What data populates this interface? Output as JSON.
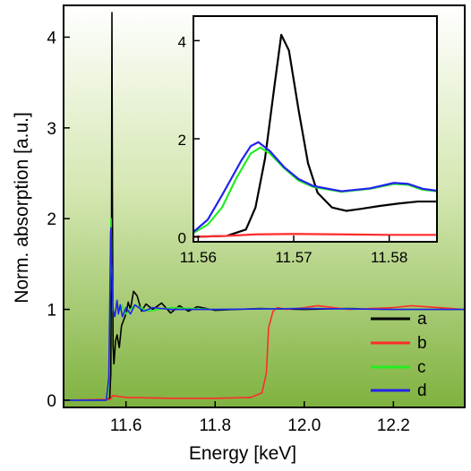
{
  "chart_data": [
    {
      "type": "line",
      "xlabel": "Energy [keV]",
      "ylabel": "Norm. absorption [a.u.]",
      "xlim": [
        11.46,
        12.36
      ],
      "ylim": [
        -0.08,
        4.35
      ],
      "xticks": [
        11.6,
        11.8,
        12.0,
        12.2
      ],
      "xtick_labels": [
        "11.6",
        "11.8",
        "12.0",
        "12.2"
      ],
      "yticks": [
        0,
        1,
        2,
        3,
        4
      ],
      "ytick_labels": [
        "0",
        "1",
        "2",
        "3",
        "4"
      ],
      "background": "gradient white (top) to green (bottom)",
      "legend_position": "bottom-right",
      "series": [
        {
          "name": "a",
          "color": "#000000",
          "points": [
            [
              11.46,
              0.0
            ],
            [
              11.555,
              0.0
            ],
            [
              11.5635,
              0.02
            ],
            [
              11.566,
              0.3
            ],
            [
              11.5675,
              1.8
            ],
            [
              11.5685,
              4.27
            ],
            [
              11.5695,
              2.3
            ],
            [
              11.571,
              0.6
            ],
            [
              11.573,
              0.4
            ],
            [
              11.5765,
              0.65
            ],
            [
              11.58,
              0.72
            ],
            [
              11.585,
              0.58
            ],
            [
              11.59,
              0.82
            ],
            [
              11.6,
              0.95
            ],
            [
              11.605,
              1.08
            ],
            [
              11.61,
              1.0
            ],
            [
              11.617,
              1.2
            ],
            [
              11.625,
              1.15
            ],
            [
              11.635,
              0.98
            ],
            [
              11.645,
              1.06
            ],
            [
              11.66,
              1.0
            ],
            [
              11.68,
              1.07
            ],
            [
              11.7,
              0.96
            ],
            [
              11.72,
              1.04
            ],
            [
              11.74,
              0.98
            ],
            [
              11.76,
              1.03
            ],
            [
              11.8,
              0.99
            ],
            [
              11.9,
              1.01
            ],
            [
              12.0,
              1.0
            ],
            [
              12.1,
              1.01
            ],
            [
              12.2,
              1.0
            ],
            [
              12.36,
              1.0
            ]
          ]
        },
        {
          "name": "b",
          "color": "#ff2b2b",
          "points": [
            [
              11.46,
              0.0
            ],
            [
              11.565,
              0.01
            ],
            [
              11.57,
              0.05
            ],
            [
              11.6,
              0.03
            ],
            [
              11.7,
              0.02
            ],
            [
              11.8,
              0.02
            ],
            [
              11.88,
              0.03
            ],
            [
              11.905,
              0.08
            ],
            [
              11.915,
              0.3
            ],
            [
              11.92,
              0.8
            ],
            [
              11.93,
              0.98
            ],
            [
              11.94,
              1.02
            ],
            [
              11.96,
              1.0
            ],
            [
              12.0,
              1.02
            ],
            [
              12.03,
              1.04
            ],
            [
              12.1,
              1.0
            ],
            [
              12.2,
              1.02
            ],
            [
              12.24,
              1.04
            ],
            [
              12.36,
              1.0
            ]
          ]
        },
        {
          "name": "c",
          "color": "#22ee22",
          "points": [
            [
              11.46,
              0.0
            ],
            [
              11.556,
              0.0
            ],
            [
              11.5615,
              0.2
            ],
            [
              11.5635,
              0.9
            ],
            [
              11.5655,
              1.75
            ],
            [
              11.5665,
              2.0
            ],
            [
              11.568,
              1.5
            ],
            [
              11.571,
              1.0
            ],
            [
              11.575,
              0.92
            ],
            [
              11.58,
              1.1
            ],
            [
              11.583,
              0.95
            ],
            [
              11.59,
              1.05
            ],
            [
              11.6,
              0.95
            ],
            [
              11.62,
              1.05
            ],
            [
              11.65,
              0.98
            ],
            [
              11.7,
              1.02
            ],
            [
              11.8,
              1.0
            ],
            [
              12.0,
              1.01
            ],
            [
              12.2,
              1.0
            ],
            [
              12.36,
              1.0
            ]
          ]
        },
        {
          "name": "d",
          "color": "#2222ee",
          "points": [
            [
              11.46,
              0.0
            ],
            [
              11.556,
              0.0
            ],
            [
              11.5615,
              0.25
            ],
            [
              11.5635,
              1.0
            ],
            [
              11.5655,
              1.85
            ],
            [
              11.5665,
              1.9
            ],
            [
              11.568,
              1.5
            ],
            [
              11.571,
              1.0
            ],
            [
              11.575,
              0.92
            ],
            [
              11.58,
              1.1
            ],
            [
              11.583,
              0.95
            ],
            [
              11.587,
              1.05
            ],
            [
              11.592,
              0.92
            ],
            [
              11.6,
              1.02
            ],
            [
              11.61,
              0.95
            ],
            [
              11.62,
              1.05
            ],
            [
              11.64,
              0.98
            ],
            [
              11.66,
              1.02
            ],
            [
              11.7,
              1.0
            ],
            [
              11.8,
              1.0
            ],
            [
              12.0,
              1.01
            ],
            [
              12.2,
              1.0
            ],
            [
              12.36,
              1.0
            ]
          ]
        }
      ]
    },
    {
      "type": "line",
      "inset": true,
      "xlim": [
        11.5595,
        11.585
      ],
      "ylim": [
        -0.1,
        4.5
      ],
      "xticks": [
        11.56,
        11.57,
        11.58
      ],
      "xtick_labels": [
        "11.56",
        "11.57",
        "11.58"
      ],
      "yticks": [
        0,
        2,
        4
      ],
      "ytick_labels": [
        "0",
        "2",
        "4"
      ],
      "series": [
        {
          "name": "a",
          "color": "#000000",
          "points": [
            [
              11.5595,
              0.0
            ],
            [
              11.563,
              0.02
            ],
            [
              11.565,
              0.15
            ],
            [
              11.566,
              0.6
            ],
            [
              11.567,
              1.6
            ],
            [
              11.568,
              3.1
            ],
            [
              11.5687,
              4.12
            ],
            [
              11.5695,
              3.8
            ],
            [
              11.5705,
              2.6
            ],
            [
              11.5715,
              1.5
            ],
            [
              11.5725,
              0.9
            ],
            [
              11.574,
              0.6
            ],
            [
              11.5755,
              0.53
            ],
            [
              11.577,
              0.57
            ],
            [
              11.579,
              0.63
            ],
            [
              11.581,
              0.68
            ],
            [
              11.583,
              0.72
            ],
            [
              11.585,
              0.72
            ]
          ]
        },
        {
          "name": "b",
          "color": "#ff2b2b",
          "points": [
            [
              11.5595,
              0.0
            ],
            [
              11.563,
              0.02
            ],
            [
              11.566,
              0.05
            ],
            [
              11.57,
              0.06
            ],
            [
              11.575,
              0.05
            ],
            [
              11.58,
              0.04
            ],
            [
              11.585,
              0.04
            ]
          ]
        },
        {
          "name": "c",
          "color": "#22ee22",
          "points": [
            [
              11.5595,
              0.08
            ],
            [
              11.561,
              0.25
            ],
            [
              11.5625,
              0.6
            ],
            [
              11.564,
              1.2
            ],
            [
              11.5655,
              1.7
            ],
            [
              11.5665,
              1.82
            ],
            [
              11.5675,
              1.7
            ],
            [
              11.569,
              1.4
            ],
            [
              11.5705,
              1.15
            ],
            [
              11.572,
              1.02
            ],
            [
              11.575,
              0.92
            ],
            [
              11.578,
              0.98
            ],
            [
              11.5805,
              1.08
            ],
            [
              11.582,
              1.06
            ],
            [
              11.5835,
              0.96
            ],
            [
              11.585,
              0.93
            ]
          ]
        },
        {
          "name": "d",
          "color": "#2222ee",
          "points": [
            [
              11.5595,
              0.1
            ],
            [
              11.561,
              0.35
            ],
            [
              11.5625,
              0.85
            ],
            [
              11.5645,
              1.55
            ],
            [
              11.5655,
              1.85
            ],
            [
              11.5663,
              1.93
            ],
            [
              11.5675,
              1.75
            ],
            [
              11.569,
              1.42
            ],
            [
              11.5705,
              1.18
            ],
            [
              11.572,
              1.04
            ],
            [
              11.575,
              0.93
            ],
            [
              11.578,
              0.99
            ],
            [
              11.5805,
              1.1
            ],
            [
              11.582,
              1.08
            ],
            [
              11.5835,
              0.98
            ],
            [
              11.585,
              0.94
            ]
          ]
        }
      ]
    }
  ]
}
